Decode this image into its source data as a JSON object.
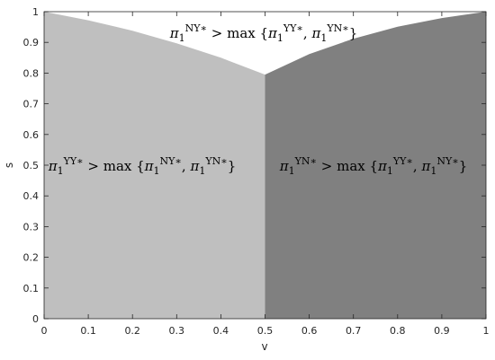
{
  "chart_data": {
    "type": "area",
    "xlabel": "v",
    "ylabel": "s",
    "xlim": [
      0,
      1
    ],
    "ylim": [
      0,
      1
    ],
    "xticks": [
      0,
      0.1,
      0.2,
      0.3,
      0.4,
      0.5,
      0.6,
      0.7,
      0.8,
      0.9,
      1
    ],
    "yticks": [
      0,
      0.1,
      0.2,
      0.3,
      0.4,
      0.5,
      0.6,
      0.7,
      0.8,
      0.9,
      1
    ],
    "series": [
      {
        "color": "#bfbfbf",
        "x": [
          0,
          0.1,
          0.2,
          0.3,
          0.4,
          0.5
        ],
        "values": [
          1,
          0.972,
          0.938,
          0.897,
          0.85,
          0.795
        ]
      },
      {
        "color": "#808080",
        "x": [
          0.5,
          0.6,
          0.7,
          0.8,
          0.9,
          1
        ],
        "values": [
          0.795,
          0.862,
          0.912,
          0.951,
          0.979,
          1
        ]
      }
    ],
    "annotations": [
      {
        "parts": [
          {
            "text": "π"
          },
          {
            "text": "1",
            "sub": true
          },
          {
            "text": "NY∗",
            "sup": true
          },
          {
            "text": " > max {"
          },
          {
            "text": "π"
          },
          {
            "text": "1",
            "sub": true
          },
          {
            "text": "YY∗",
            "sup": true
          },
          {
            "text": ", "
          },
          {
            "text": "π"
          },
          {
            "text": "1",
            "sub": true
          },
          {
            "text": "YN∗",
            "sup": true
          },
          {
            "text": "}"
          }
        ]
      },
      {
        "parts": [
          {
            "text": "π"
          },
          {
            "text": "1",
            "sub": true
          },
          {
            "text": "YY∗",
            "sup": true
          },
          {
            "text": " > max {"
          },
          {
            "text": "π"
          },
          {
            "text": "1",
            "sub": true
          },
          {
            "text": "NY∗",
            "sup": true
          },
          {
            "text": ", "
          },
          {
            "text": "π"
          },
          {
            "text": "1",
            "sub": true
          },
          {
            "text": "YN∗",
            "sup": true
          },
          {
            "text": "}"
          }
        ]
      },
      {
        "parts": [
          {
            "text": "π"
          },
          {
            "text": "1",
            "sub": true
          },
          {
            "text": "YN∗",
            "sup": true
          },
          {
            "text": " > max {"
          },
          {
            "text": "π"
          },
          {
            "text": "1",
            "sub": true
          },
          {
            "text": "YY∗",
            "sup": true
          },
          {
            "text": ", "
          },
          {
            "text": "π"
          },
          {
            "text": "1",
            "sub": true
          },
          {
            "text": "NY∗",
            "sup": true
          },
          {
            "text": "}"
          }
        ]
      }
    ]
  }
}
